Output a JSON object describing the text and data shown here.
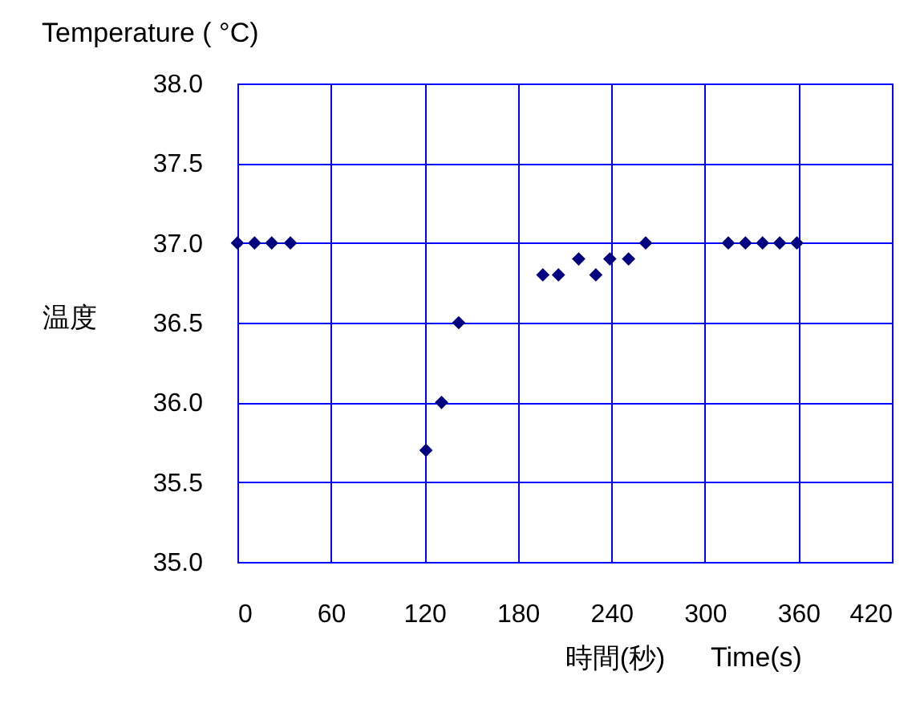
{
  "chart_data": {
    "type": "scatter",
    "title": "Temperature ( °C)",
    "ylabel": "温度",
    "xlabel": "時間(秒)",
    "annotations": [
      "Time(s)"
    ],
    "x": [
      0,
      11,
      22,
      34,
      121,
      131,
      142,
      196,
      206,
      219,
      230,
      239,
      251,
      262,
      315,
      326,
      337,
      348,
      359
    ],
    "series": [
      {
        "color": "#000080",
        "values": [
          37.0,
          37.0,
          37.0,
          37.0,
          35.7,
          36.0,
          36.5,
          36.8,
          36.8,
          36.9,
          36.8,
          36.9,
          36.9,
          37.0,
          37.0,
          37.0,
          37.0,
          37.0,
          37.0
        ]
      }
    ],
    "xlim": [
      0,
      420
    ],
    "xticks": [
      0,
      60,
      120,
      180,
      240,
      300,
      360,
      420
    ],
    "ylim": [
      35,
      38
    ],
    "yticks": [
      {
        "value": 35,
        "label": "35.0"
      },
      {
        "value": 35.5,
        "label": "35.5"
      },
      {
        "value": 36,
        "label": "36.0"
      },
      {
        "value": 36.5,
        "label": "36.5"
      },
      {
        "value": 37,
        "label": "37.0"
      },
      {
        "value": 37.5,
        "label": "37.5"
      },
      {
        "value": 38,
        "label": "38.0"
      }
    ],
    "grid": true,
    "legend": false,
    "marker": "diamond"
  }
}
